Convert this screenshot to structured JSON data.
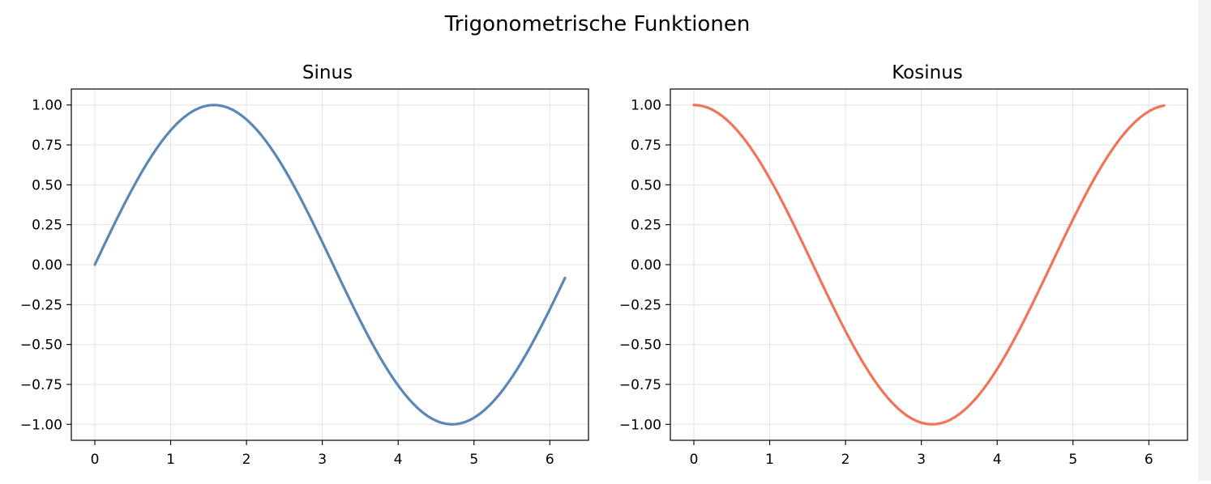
{
  "figure": {
    "title": "Trigonometrische Funktionen"
  },
  "chart_data": [
    {
      "type": "line",
      "title": "Sinus",
      "xlabel": "",
      "ylabel": "",
      "function": "sin",
      "x_range": [
        0,
        6.2
      ],
      "samples": 100,
      "xlim": [
        -0.31,
        6.51
      ],
      "ylim": [
        -1.1,
        1.1
      ],
      "xticks": [
        0,
        1,
        2,
        3,
        4,
        5,
        6
      ],
      "xtick_labels": [
        "0",
        "1",
        "2",
        "3",
        "4",
        "5",
        "6"
      ],
      "yticks": [
        1,
        0.75,
        0.5,
        0.25,
        0,
        -0.25,
        -0.5,
        -0.75,
        -1
      ],
      "ytick_labels": [
        "1.00",
        "0.75",
        "0.50",
        "0.25",
        "0.00",
        "−0.25",
        "−0.50",
        "−0.75",
        "−1.00"
      ],
      "grid": true,
      "color": "#5b86b5"
    },
    {
      "type": "line",
      "title": "Kosinus",
      "xlabel": "",
      "ylabel": "",
      "function": "cos",
      "x_range": [
        0,
        6.2
      ],
      "samples": 100,
      "xlim": [
        -0.31,
        6.51
      ],
      "ylim": [
        -1.1,
        1.1
      ],
      "xticks": [
        0,
        1,
        2,
        3,
        4,
        5,
        6
      ],
      "xtick_labels": [
        "0",
        "1",
        "2",
        "3",
        "4",
        "5",
        "6"
      ],
      "yticks": [
        1,
        0.75,
        0.5,
        0.25,
        0,
        -0.25,
        -0.5,
        -0.75,
        -1
      ],
      "ytick_labels": [
        "1.00",
        "0.75",
        "0.50",
        "0.25",
        "0.00",
        "−0.25",
        "−0.50",
        "−0.75",
        "−1.00"
      ],
      "grid": true,
      "color": "#f07458"
    }
  ]
}
